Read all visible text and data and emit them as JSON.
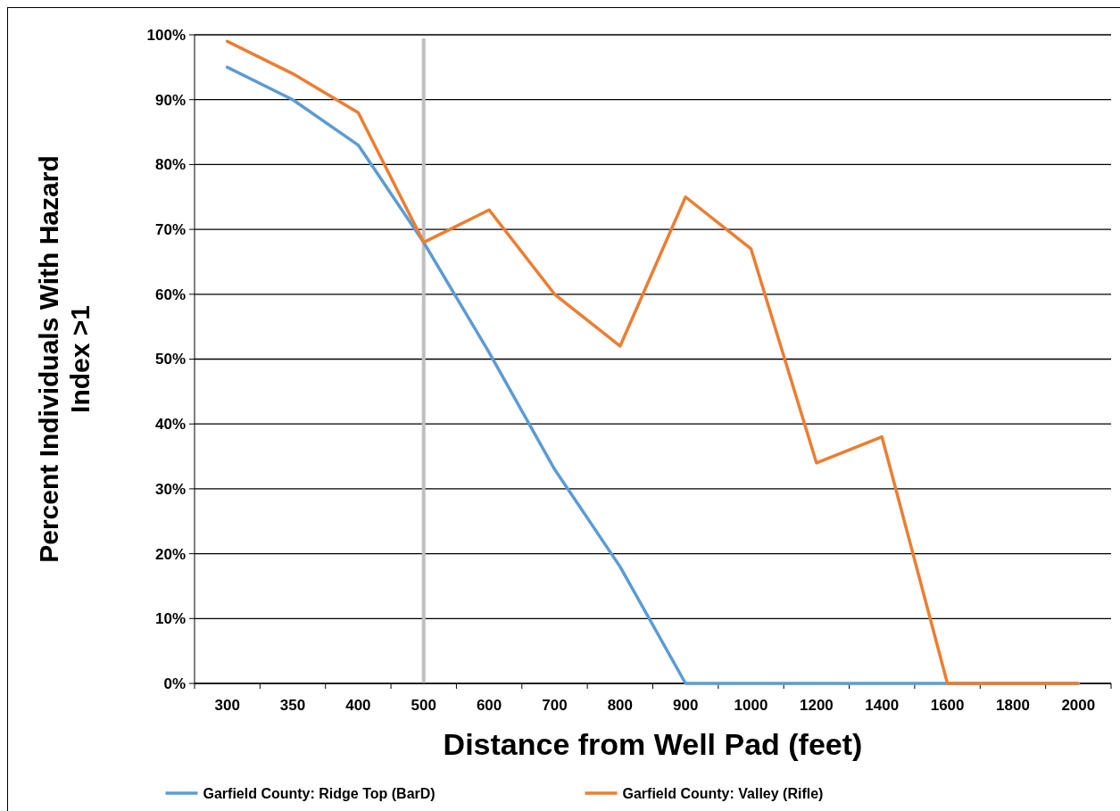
{
  "chart_data": {
    "type": "line",
    "xlabel": "Distance from Well Pad (feet)",
    "ylabel": "Percent Individuals With Hazard Index >1",
    "categories": [
      "300",
      "350",
      "400",
      "500",
      "600",
      "700",
      "800",
      "900",
      "1000",
      "1200",
      "1400",
      "1600",
      "1800",
      "2000"
    ],
    "series": [
      {
        "name": "Garfield County: Ridge Top (BarD)",
        "color": "#5b9bd5",
        "values": [
          95,
          90,
          83,
          68,
          51,
          33,
          18,
          0,
          0,
          0,
          0,
          0,
          0,
          0
        ]
      },
      {
        "name": "Garfield County: Valley (Rifle)",
        "color": "#ed7d31",
        "values": [
          99,
          94,
          88,
          68,
          73,
          60,
          52,
          75,
          67,
          34,
          38,
          0,
          0,
          0
        ]
      }
    ],
    "ylim": [
      0,
      100
    ],
    "yticks": [
      {
        "value": 0,
        "label": "0%"
      },
      {
        "value": 10,
        "label": "10%"
      },
      {
        "value": 20,
        "label": "20%"
      },
      {
        "value": 30,
        "label": "30%"
      },
      {
        "value": 40,
        "label": "40%"
      },
      {
        "value": 50,
        "label": "50%"
      },
      {
        "value": 60,
        "label": "60%"
      },
      {
        "value": 70,
        "label": "70%"
      },
      {
        "value": 80,
        "label": "80%"
      },
      {
        "value": 90,
        "label": "90%"
      },
      {
        "value": 100,
        "label": "100%"
      }
    ],
    "ref_lines": [
      {
        "axis": "x",
        "value": "500",
        "color": "#bfbfbf"
      }
    ],
    "grid": "y",
    "legend": "bottom",
    "marker": "none",
    "line_style": "solid"
  }
}
